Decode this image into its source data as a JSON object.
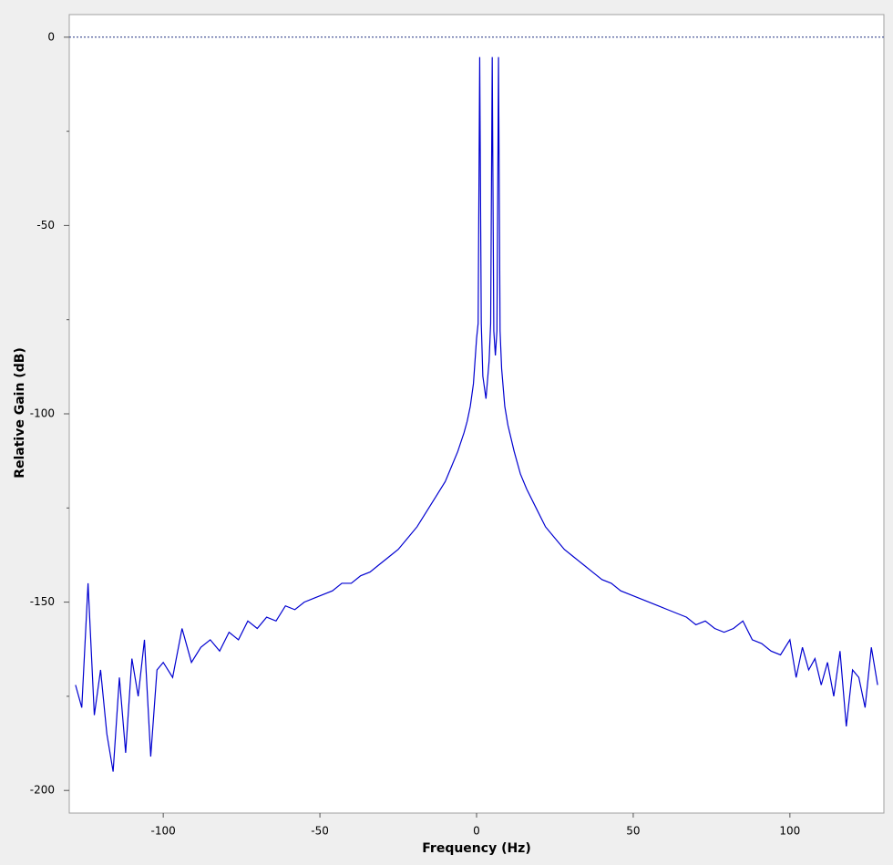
{
  "chart_data": {
    "type": "line",
    "xlabel": "Frequency (Hz)",
    "ylabel": "Relative Gain (dB)",
    "xlim": [
      -130,
      130
    ],
    "ylim": [
      -206,
      6
    ],
    "xticks": [
      -100,
      -50,
      0,
      50,
      100
    ],
    "yticks": [
      0,
      -50,
      -100,
      -150,
      -200
    ],
    "yminorticks": [
      -25,
      -75,
      -125,
      -175
    ],
    "reference_line": 0,
    "color": "#0000d0",
    "x": [
      -128,
      -126,
      -124,
      -122,
      -120,
      -118,
      -116,
      -114,
      -112,
      -110,
      -108,
      -106,
      -104,
      -102,
      -100,
      -97,
      -94,
      -91,
      -88,
      -85,
      -82,
      -79,
      -76,
      -73,
      -70,
      -67,
      -64,
      -61,
      -58,
      -55,
      -52,
      -49,
      -46,
      -43,
      -40,
      -37,
      -34,
      -31,
      -28,
      -25,
      -22,
      -19,
      -16,
      -13,
      -10,
      -8,
      -6,
      -4,
      -3,
      -2,
      -1,
      0,
      0.5,
      1,
      1.5,
      2,
      3,
      4,
      4.5,
      5,
      5.5,
      6,
      6.5,
      7,
      7.5,
      8,
      9,
      10,
      12,
      14,
      16,
      19,
      22,
      25,
      28,
      31,
      34,
      37,
      40,
      43,
      46,
      49,
      52,
      55,
      58,
      61,
      64,
      67,
      70,
      73,
      76,
      79,
      82,
      85,
      88,
      91,
      94,
      97,
      100,
      102,
      104,
      106,
      108,
      110,
      112,
      114,
      116,
      118,
      120,
      122,
      124,
      126,
      128
    ],
    "values": [
      -172,
      -178,
      -145,
      -180,
      -168,
      -185,
      -195,
      -170,
      -190,
      -165,
      -175,
      -160,
      -191,
      -168,
      -166,
      -170,
      -157,
      -166,
      -162,
      -160,
      -163,
      -158,
      -160,
      -155,
      -157,
      -154,
      -155,
      -151,
      -152,
      -150,
      -149,
      -148,
      -147,
      -145,
      -145,
      -143,
      -142,
      -140,
      -138,
      -136,
      -133,
      -130,
      -126,
      -122,
      -118,
      -114,
      -110,
      -105,
      -102,
      -98,
      -92,
      -80,
      -76,
      -5.3,
      -76,
      -90,
      -96,
      -86,
      -76,
      -5.3,
      -78,
      -84.5,
      -78,
      -5.3,
      -78,
      -88,
      -98,
      -103,
      -110,
      -116,
      -120,
      -125,
      -130,
      -133,
      -136,
      -138,
      -140,
      -142,
      -144,
      -145,
      -147,
      -148,
      -149,
      -150,
      -151,
      -152,
      -153,
      -154,
      -156,
      -155,
      -157,
      -158,
      -157,
      -155,
      -160,
      -161,
      -163,
      -164,
      -160,
      -170,
      -162,
      -168,
      -165,
      -172,
      -166,
      -175,
      -163,
      -183,
      -168,
      -170,
      -178,
      -162,
      -172
    ]
  }
}
